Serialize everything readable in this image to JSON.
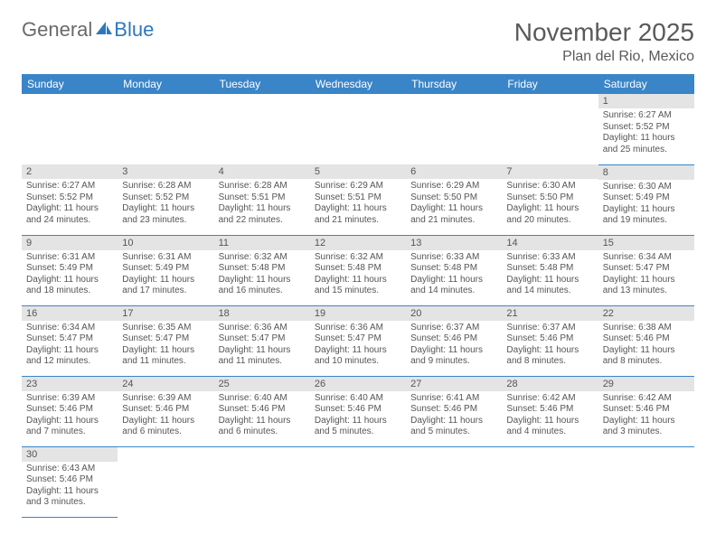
{
  "logo": {
    "part1": "General",
    "part2": "Blue"
  },
  "header": {
    "month": "November 2025",
    "location": "Plan del Rio, Mexico"
  },
  "colors": {
    "header_bg": "#3a85c8",
    "header_fg": "#ffffff",
    "daynum_bg": "#e4e4e4",
    "cell_border": "#3a85c8",
    "logo_gray": "#6a6a6a",
    "logo_blue": "#2d78bd",
    "text": "#555555"
  },
  "weekdays": [
    "Sunday",
    "Monday",
    "Tuesday",
    "Wednesday",
    "Thursday",
    "Friday",
    "Saturday"
  ],
  "weeks": [
    [
      null,
      null,
      null,
      null,
      null,
      null,
      {
        "n": "1",
        "sunrise": "Sunrise: 6:27 AM",
        "sunset": "Sunset: 5:52 PM",
        "daylight": "Daylight: 11 hours and 25 minutes."
      }
    ],
    [
      {
        "n": "2",
        "sunrise": "Sunrise: 6:27 AM",
        "sunset": "Sunset: 5:52 PM",
        "daylight": "Daylight: 11 hours and 24 minutes."
      },
      {
        "n": "3",
        "sunrise": "Sunrise: 6:28 AM",
        "sunset": "Sunset: 5:52 PM",
        "daylight": "Daylight: 11 hours and 23 minutes."
      },
      {
        "n": "4",
        "sunrise": "Sunrise: 6:28 AM",
        "sunset": "Sunset: 5:51 PM",
        "daylight": "Daylight: 11 hours and 22 minutes."
      },
      {
        "n": "5",
        "sunrise": "Sunrise: 6:29 AM",
        "sunset": "Sunset: 5:51 PM",
        "daylight": "Daylight: 11 hours and 21 minutes."
      },
      {
        "n": "6",
        "sunrise": "Sunrise: 6:29 AM",
        "sunset": "Sunset: 5:50 PM",
        "daylight": "Daylight: 11 hours and 21 minutes."
      },
      {
        "n": "7",
        "sunrise": "Sunrise: 6:30 AM",
        "sunset": "Sunset: 5:50 PM",
        "daylight": "Daylight: 11 hours and 20 minutes."
      },
      {
        "n": "8",
        "sunrise": "Sunrise: 6:30 AM",
        "sunset": "Sunset: 5:49 PM",
        "daylight": "Daylight: 11 hours and 19 minutes."
      }
    ],
    [
      {
        "n": "9",
        "sunrise": "Sunrise: 6:31 AM",
        "sunset": "Sunset: 5:49 PM",
        "daylight": "Daylight: 11 hours and 18 minutes."
      },
      {
        "n": "10",
        "sunrise": "Sunrise: 6:31 AM",
        "sunset": "Sunset: 5:49 PM",
        "daylight": "Daylight: 11 hours and 17 minutes."
      },
      {
        "n": "11",
        "sunrise": "Sunrise: 6:32 AM",
        "sunset": "Sunset: 5:48 PM",
        "daylight": "Daylight: 11 hours and 16 minutes."
      },
      {
        "n": "12",
        "sunrise": "Sunrise: 6:32 AM",
        "sunset": "Sunset: 5:48 PM",
        "daylight": "Daylight: 11 hours and 15 minutes."
      },
      {
        "n": "13",
        "sunrise": "Sunrise: 6:33 AM",
        "sunset": "Sunset: 5:48 PM",
        "daylight": "Daylight: 11 hours and 14 minutes."
      },
      {
        "n": "14",
        "sunrise": "Sunrise: 6:33 AM",
        "sunset": "Sunset: 5:48 PM",
        "daylight": "Daylight: 11 hours and 14 minutes."
      },
      {
        "n": "15",
        "sunrise": "Sunrise: 6:34 AM",
        "sunset": "Sunset: 5:47 PM",
        "daylight": "Daylight: 11 hours and 13 minutes."
      }
    ],
    [
      {
        "n": "16",
        "sunrise": "Sunrise: 6:34 AM",
        "sunset": "Sunset: 5:47 PM",
        "daylight": "Daylight: 11 hours and 12 minutes."
      },
      {
        "n": "17",
        "sunrise": "Sunrise: 6:35 AM",
        "sunset": "Sunset: 5:47 PM",
        "daylight": "Daylight: 11 hours and 11 minutes."
      },
      {
        "n": "18",
        "sunrise": "Sunrise: 6:36 AM",
        "sunset": "Sunset: 5:47 PM",
        "daylight": "Daylight: 11 hours and 11 minutes."
      },
      {
        "n": "19",
        "sunrise": "Sunrise: 6:36 AM",
        "sunset": "Sunset: 5:47 PM",
        "daylight": "Daylight: 11 hours and 10 minutes."
      },
      {
        "n": "20",
        "sunrise": "Sunrise: 6:37 AM",
        "sunset": "Sunset: 5:46 PM",
        "daylight": "Daylight: 11 hours and 9 minutes."
      },
      {
        "n": "21",
        "sunrise": "Sunrise: 6:37 AM",
        "sunset": "Sunset: 5:46 PM",
        "daylight": "Daylight: 11 hours and 8 minutes."
      },
      {
        "n": "22",
        "sunrise": "Sunrise: 6:38 AM",
        "sunset": "Sunset: 5:46 PM",
        "daylight": "Daylight: 11 hours and 8 minutes."
      }
    ],
    [
      {
        "n": "23",
        "sunrise": "Sunrise: 6:39 AM",
        "sunset": "Sunset: 5:46 PM",
        "daylight": "Daylight: 11 hours and 7 minutes."
      },
      {
        "n": "24",
        "sunrise": "Sunrise: 6:39 AM",
        "sunset": "Sunset: 5:46 PM",
        "daylight": "Daylight: 11 hours and 6 minutes."
      },
      {
        "n": "25",
        "sunrise": "Sunrise: 6:40 AM",
        "sunset": "Sunset: 5:46 PM",
        "daylight": "Daylight: 11 hours and 6 minutes."
      },
      {
        "n": "26",
        "sunrise": "Sunrise: 6:40 AM",
        "sunset": "Sunset: 5:46 PM",
        "daylight": "Daylight: 11 hours and 5 minutes."
      },
      {
        "n": "27",
        "sunrise": "Sunrise: 6:41 AM",
        "sunset": "Sunset: 5:46 PM",
        "daylight": "Daylight: 11 hours and 5 minutes."
      },
      {
        "n": "28",
        "sunrise": "Sunrise: 6:42 AM",
        "sunset": "Sunset: 5:46 PM",
        "daylight": "Daylight: 11 hours and 4 minutes."
      },
      {
        "n": "29",
        "sunrise": "Sunrise: 6:42 AM",
        "sunset": "Sunset: 5:46 PM",
        "daylight": "Daylight: 11 hours and 3 minutes."
      }
    ],
    [
      {
        "n": "30",
        "sunrise": "Sunrise: 6:43 AM",
        "sunset": "Sunset: 5:46 PM",
        "daylight": "Daylight: 11 hours and 3 minutes."
      },
      null,
      null,
      null,
      null,
      null,
      null
    ]
  ]
}
